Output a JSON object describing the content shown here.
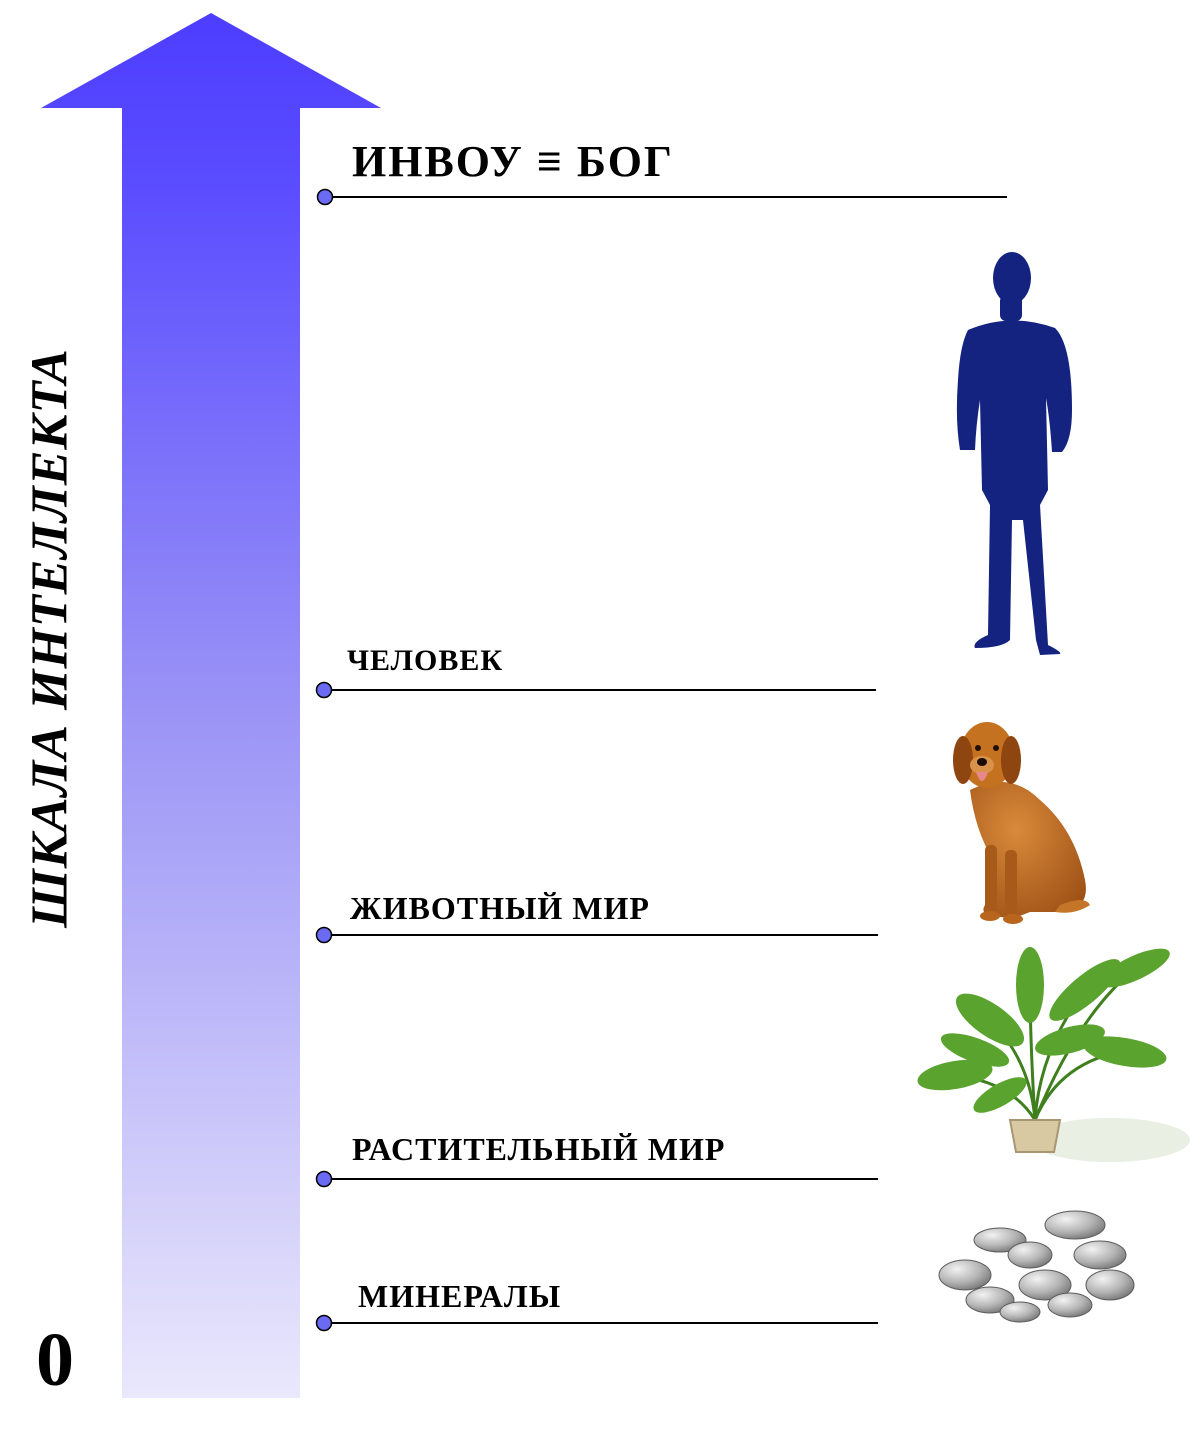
{
  "diagram": {
    "axis_title": "ШКАЛА ИНТЕЛЛЕКТА",
    "zero_label": "0",
    "levels": [
      {
        "label": "ИНВОУ ≡ БОГ",
        "illustration": "none"
      },
      {
        "label": "ЧЕЛОВЕК",
        "illustration": "human-silhouette"
      },
      {
        "label": "ЖИВОТНЫЙ МИР",
        "illustration": "dog"
      },
      {
        "label": "РАСТИТЕЛЬНЫЙ МИР",
        "illustration": "potted-palm"
      },
      {
        "label": "МИНЕРАЛЫ",
        "illustration": "stones"
      }
    ],
    "colors": {
      "arrow_top": "#5a4cff",
      "arrow_bottom": "#e8e6fb",
      "marker_fill": "#6a6af2",
      "human_silhouette": "#13237f",
      "dog_fur": "#b8661e",
      "plant_leaf": "#4f9a2a",
      "stone": "#a8a8a8"
    }
  }
}
